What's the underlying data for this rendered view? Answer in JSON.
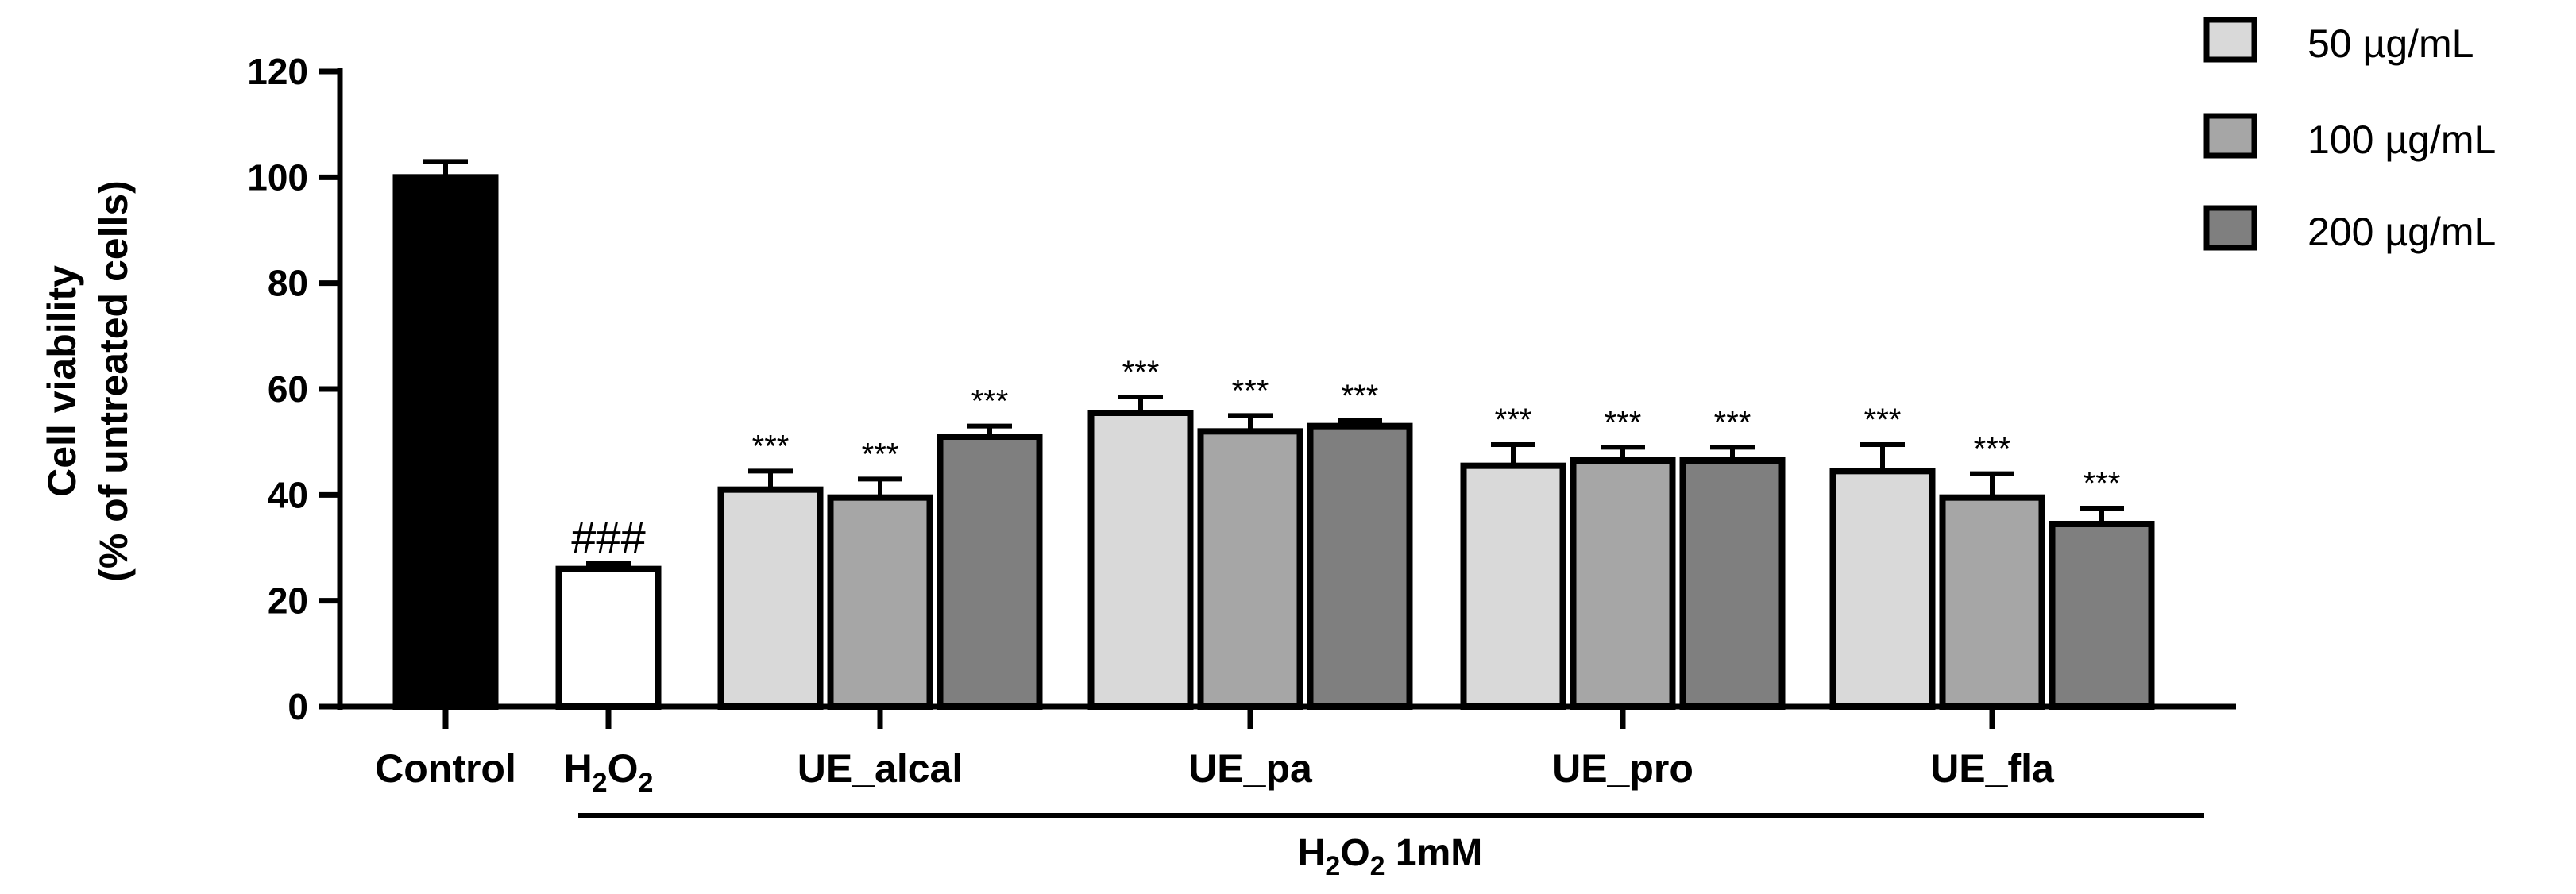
{
  "chart_data": {
    "type": "bar",
    "ylabel_line1": "Cell viability",
    "ylabel_line2": "(% of untreated cells)",
    "ylim": [
      0,
      120
    ],
    "yticks": [
      0,
      20,
      40,
      60,
      80,
      100,
      120
    ],
    "grid": false,
    "legend_position": "top-right",
    "legend": [
      {
        "label": "50 µg/mL",
        "color": "#d9d9d9"
      },
      {
        "label": "100 µg/mL",
        "color": "#a6a6a6"
      },
      {
        "label": "200 µg/mL",
        "color": "#7f7f7f"
      }
    ],
    "controls": [
      {
        "category": "Control",
        "value": 100,
        "error": 3,
        "color": "#000000",
        "annotation": ""
      },
      {
        "category_main": "H",
        "category_sub1": "2",
        "category_mid": "O",
        "category_sub2": "2",
        "value": 26,
        "error": 1,
        "color": "#ffffff",
        "annotation": "###"
      }
    ],
    "groups": [
      {
        "category": "UE_alcal",
        "values": [
          41,
          39.5,
          51
        ],
        "errors": [
          3.5,
          3.5,
          2
        ],
        "annotations": [
          "***",
          "***",
          "***"
        ]
      },
      {
        "category": "UE_pa",
        "values": [
          55.5,
          52,
          53
        ],
        "errors": [
          3,
          3,
          1
        ],
        "annotations": [
          "***",
          "***",
          "***"
        ]
      },
      {
        "category": "UE_pro",
        "values": [
          45.5,
          46.5,
          46.5
        ],
        "errors": [
          4,
          2.5,
          2.5
        ],
        "annotations": [
          "***",
          "***",
          "***"
        ]
      },
      {
        "category": "UE_fla",
        "values": [
          44.5,
          39.5,
          34.5
        ],
        "errors": [
          5,
          4.5,
          3
        ],
        "annotations": [
          "***",
          "***",
          "***"
        ]
      }
    ],
    "bracket_label": {
      "main": "H",
      "sub1": "2",
      "mid": "O",
      "sub2": "2",
      "tail": " 1mM"
    }
  }
}
